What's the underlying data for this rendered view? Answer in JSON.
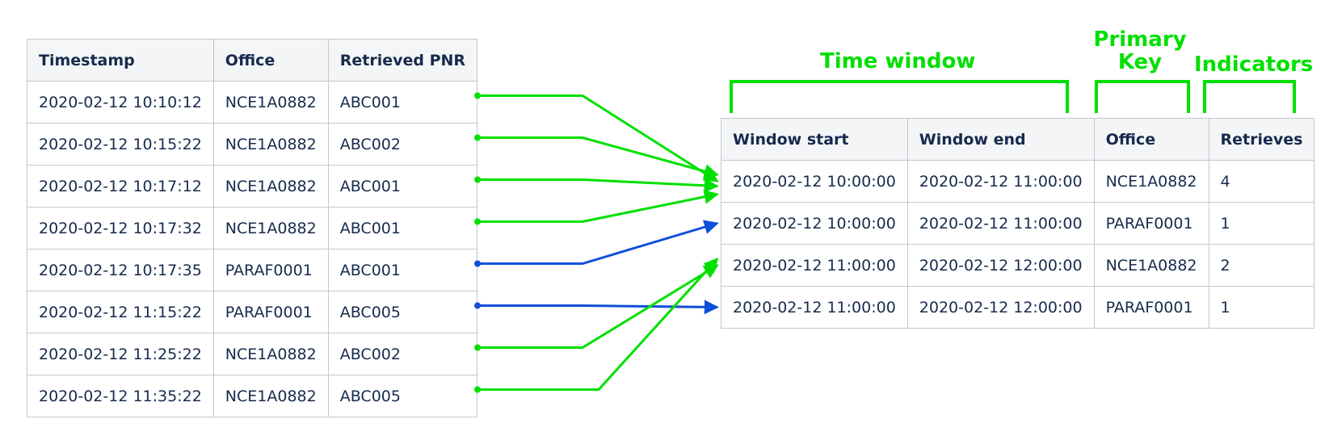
{
  "colors": {
    "green": "#00e000",
    "blue": "#1050d8",
    "header_bg": "#f4f5f7",
    "border": "#c1c7d0",
    "text": "#172b4d"
  },
  "left_table": {
    "headers": [
      "Timestamp",
      "Office",
      "Retrieved PNR"
    ],
    "rows": [
      [
        "2020-02-12 10:10:12",
        "NCE1A0882",
        "ABC001"
      ],
      [
        "2020-02-12 10:15:22",
        "NCE1A0882",
        "ABC002"
      ],
      [
        "2020-02-12 10:17:12",
        "NCE1A0882",
        "ABC001"
      ],
      [
        "2020-02-12 10:17:32",
        "NCE1A0882",
        "ABC001"
      ],
      [
        "2020-02-12 10:17:35",
        "PARAF0001",
        "ABC001"
      ],
      [
        "2020-02-12 11:15:22",
        "PARAF0001",
        "ABC005"
      ],
      [
        "2020-02-12 11:25:22",
        "NCE1A0882",
        "ABC002"
      ],
      [
        "2020-02-12 11:35:22",
        "NCE1A0882",
        "ABC005"
      ]
    ]
  },
  "right_table": {
    "headers": [
      "Window start",
      "Window end",
      "Office",
      "Retrieves"
    ],
    "rows": [
      [
        "2020-02-12 10:00:00",
        "2020-02-12 11:00:00",
        "NCE1A0882",
        "4"
      ],
      [
        "2020-02-12 10:00:00",
        "2020-02-12 11:00:00",
        "PARAF0001",
        "1"
      ],
      [
        "2020-02-12 11:00:00",
        "2020-02-12 12:00:00",
        "NCE1A0882",
        "2"
      ],
      [
        "2020-02-12 11:00:00",
        "2020-02-12 12:00:00",
        "PARAF0001",
        "1"
      ]
    ]
  },
  "labels": {
    "time_window": "Time window",
    "primary_key_line1": "Primary",
    "primary_key_line2": "Key",
    "indicators": "Indicators"
  },
  "arrows": [
    {
      "from_row": 0,
      "to_row": 0,
      "color": "green"
    },
    {
      "from_row": 1,
      "to_row": 0,
      "color": "green"
    },
    {
      "from_row": 2,
      "to_row": 0,
      "color": "green"
    },
    {
      "from_row": 3,
      "to_row": 0,
      "color": "green"
    },
    {
      "from_row": 4,
      "to_row": 1,
      "color": "blue"
    },
    {
      "from_row": 5,
      "to_row": 3,
      "color": "blue"
    },
    {
      "from_row": 6,
      "to_row": 2,
      "color": "green"
    },
    {
      "from_row": 7,
      "to_row": 2,
      "color": "green"
    }
  ]
}
